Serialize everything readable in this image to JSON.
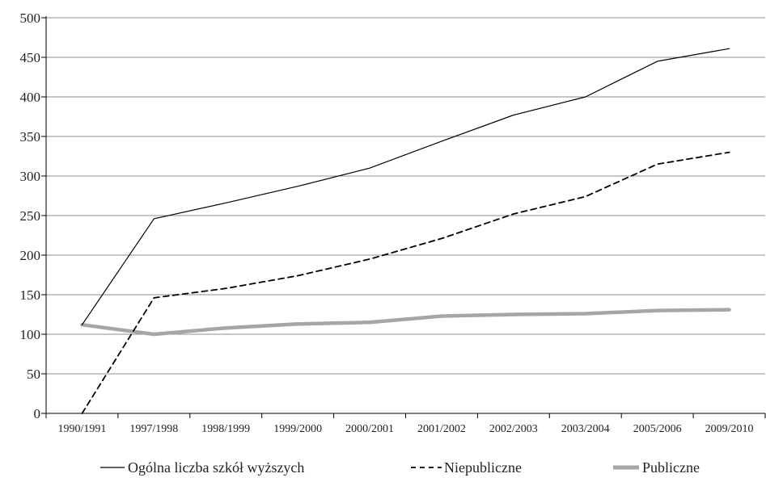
{
  "chart_data": {
    "type": "line",
    "categories": [
      "1990/1991",
      "1997/1998",
      "1998/1999",
      "1999/2000",
      "2000/2001",
      "2001/2002",
      "2002/2003",
      "2003/2004",
      "2005/2006",
      "2009/2010"
    ],
    "series": [
      {
        "name": "Ogólna liczba szkół wyższych",
        "values": [
          112,
          246,
          266,
          287,
          310,
          344,
          377,
          400,
          445,
          461
        ],
        "color": "#000000",
        "style": "solid-thin"
      },
      {
        "name": "Niepubliczne",
        "values": [
          0,
          146,
          158,
          174,
          195,
          221,
          252,
          274,
          315,
          330
        ],
        "color": "#000000",
        "style": "dashed"
      },
      {
        "name": "Publiczne",
        "values": [
          112,
          100,
          108,
          113,
          115,
          123,
          125,
          126,
          130,
          131
        ],
        "color": "#a6a6a6",
        "style": "solid-thick"
      }
    ],
    "yticks": [
      "0",
      "50",
      "100",
      "150",
      "200",
      "250",
      "300",
      "350",
      "400",
      "450",
      "500"
    ],
    "ylim": [
      0,
      500
    ],
    "grid": true,
    "legend_position": "bottom"
  }
}
